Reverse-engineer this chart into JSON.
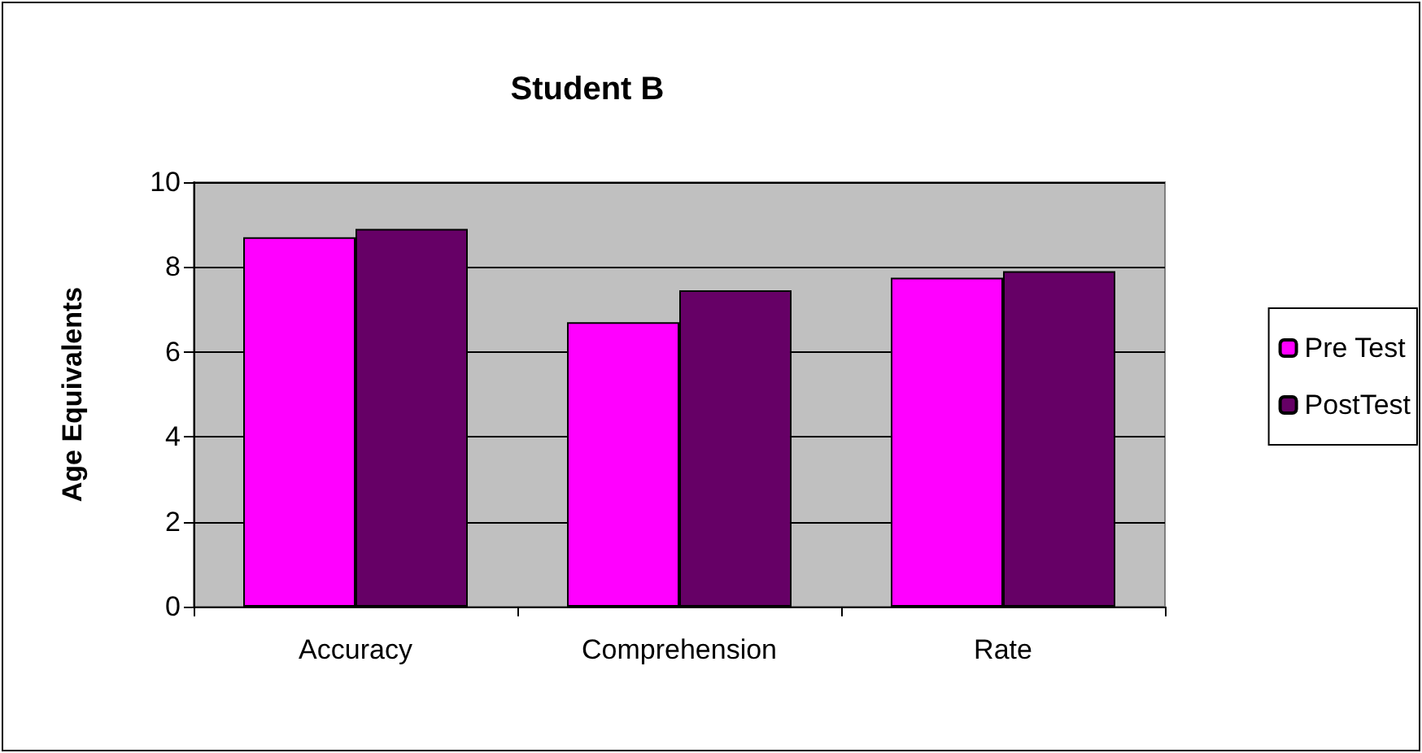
{
  "chart_data": {
    "type": "bar",
    "title": "Student B",
    "ylabel": "Age Equivalents",
    "categories": [
      "Accuracy",
      "Comprehension",
      "Rate"
    ],
    "series": [
      {
        "name": "Pre Test",
        "color": "#ff00ff",
        "values": [
          8.7,
          6.7,
          7.75
        ]
      },
      {
        "name": "PostTest",
        "color": "#660066",
        "values": [
          8.9,
          7.45,
          7.9
        ]
      }
    ],
    "ylim": [
      0,
      10
    ],
    "yticks": [
      0,
      2,
      4,
      6,
      8,
      10
    ],
    "grid": "y",
    "legend": "right"
  }
}
